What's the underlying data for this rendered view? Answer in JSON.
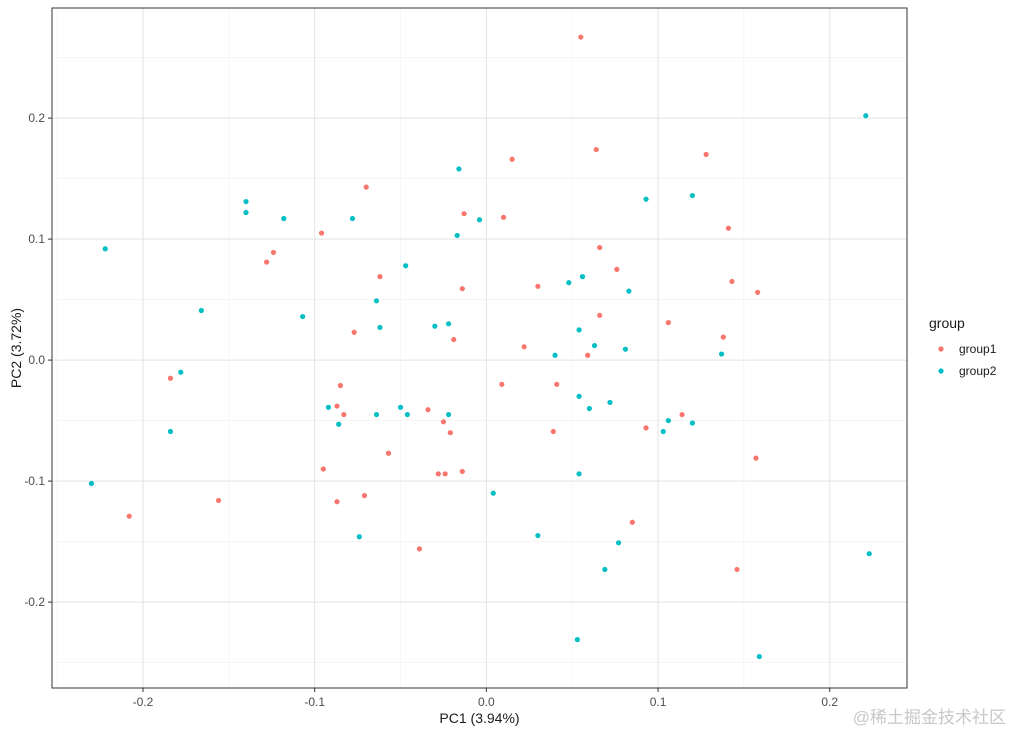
{
  "chart_data": {
    "type": "scatter",
    "title": "",
    "xlabel": "PC1 (3.94%)",
    "ylabel": "PC2 (3.72%)",
    "xlim": [
      -0.253,
      0.245
    ],
    "ylim": [
      -0.271,
      0.291
    ],
    "x_ticks": [
      -0.2,
      -0.1,
      0.0,
      0.1,
      0.2
    ],
    "x_tick_labels": [
      "-0.2",
      "-0.1",
      "0.0",
      "0.1",
      "0.2"
    ],
    "y_ticks": [
      -0.2,
      -0.1,
      0.0,
      0.1,
      0.2
    ],
    "y_tick_labels": [
      "-0.2",
      "-0.1",
      "0.0",
      "0.1",
      "0.2"
    ],
    "grid": true,
    "legend": {
      "title": "group",
      "position": "right",
      "entries": [
        "group1",
        "group2"
      ]
    },
    "series": [
      {
        "name": "group1",
        "color": "#F8766D",
        "x": [
          0.055,
          0.064,
          0.015,
          0.128,
          -0.07,
          -0.013,
          0.01,
          0.141,
          -0.096,
          0.066,
          -0.124,
          -0.128,
          -0.062,
          0.076,
          0.143,
          0.03,
          -0.014,
          0.158,
          0.066,
          0.106,
          -0.077,
          0.138,
          -0.019,
          0.022,
          0.059,
          0.009,
          0.041,
          -0.085,
          -0.087,
          -0.083,
          -0.034,
          -0.025,
          0.039,
          0.093,
          0.114,
          -0.021,
          -0.057,
          0.157,
          -0.095,
          -0.014,
          -0.028,
          -0.024,
          -0.071,
          -0.087,
          -0.156,
          -0.208,
          0.085,
          -0.039,
          0.146,
          -0.184
        ],
        "y": [
          0.267,
          0.174,
          0.166,
          0.17,
          0.143,
          0.121,
          0.118,
          0.109,
          0.105,
          0.093,
          0.089,
          0.081,
          0.069,
          0.075,
          0.065,
          0.061,
          0.059,
          0.056,
          0.037,
          0.031,
          0.023,
          0.019,
          0.017,
          0.011,
          0.004,
          -0.02,
          -0.02,
          -0.021,
          -0.038,
          -0.045,
          -0.041,
          -0.051,
          -0.059,
          -0.056,
          -0.045,
          -0.06,
          -0.077,
          -0.081,
          -0.09,
          -0.092,
          -0.094,
          -0.094,
          -0.112,
          -0.117,
          -0.116,
          -0.129,
          -0.134,
          -0.156,
          -0.173,
          -0.015
        ]
      },
      {
        "name": "group2",
        "color": "#00BFC4",
        "x": [
          0.221,
          -0.016,
          0.12,
          0.093,
          -0.14,
          -0.14,
          -0.118,
          -0.078,
          -0.004,
          -0.017,
          -0.222,
          -0.047,
          0.056,
          0.048,
          0.083,
          -0.064,
          -0.166,
          -0.107,
          -0.03,
          -0.022,
          -0.062,
          0.054,
          0.063,
          0.081,
          0.137,
          0.04,
          -0.178,
          0.054,
          0.072,
          0.06,
          -0.092,
          -0.05,
          -0.022,
          -0.064,
          -0.046,
          -0.086,
          0.106,
          0.12,
          0.103,
          -0.184,
          0.054,
          -0.23,
          0.004,
          0.03,
          0.077,
          -0.074,
          0.223,
          0.069,
          0.053,
          0.159
        ],
        "y": [
          0.202,
          0.158,
          0.136,
          0.133,
          0.131,
          0.122,
          0.117,
          0.117,
          0.116,
          0.103,
          0.092,
          0.078,
          0.069,
          0.064,
          0.057,
          0.049,
          0.041,
          0.036,
          0.028,
          0.03,
          0.027,
          0.025,
          0.012,
          0.009,
          0.005,
          0.004,
          -0.01,
          -0.03,
          -0.035,
          -0.04,
          -0.039,
          -0.039,
          -0.045,
          -0.045,
          -0.045,
          -0.053,
          -0.05,
          -0.052,
          -0.059,
          -0.059,
          -0.094,
          -0.102,
          -0.11,
          -0.145,
          -0.151,
          -0.146,
          -0.16,
          -0.173,
          -0.231,
          -0.245
        ]
      }
    ]
  },
  "watermark": "@稀土掘金技术社区"
}
